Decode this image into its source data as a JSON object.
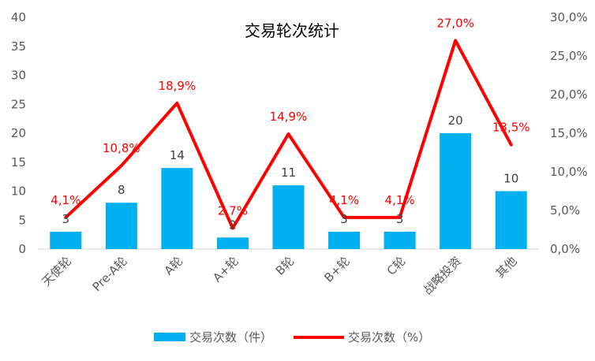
{
  "chart_data": {
    "type": "bar",
    "title": "交易轮次统计",
    "categories": [
      "天使轮",
      "Pre-A轮",
      "A轮",
      "A+轮",
      "B轮",
      "B+轮",
      "C轮",
      "战略投资",
      "其他"
    ],
    "series": [
      {
        "name": "交易次数（件）",
        "type": "bar",
        "axis": "left",
        "values": [
          3,
          8,
          14,
          2,
          11,
          3,
          3,
          20,
          10
        ],
        "labels": [
          "3",
          "8",
          "14",
          "2",
          "11",
          "3",
          "3",
          "20",
          "10"
        ],
        "color": "#00b0f0"
      },
      {
        "name": "交易次数（%）",
        "type": "line",
        "axis": "right",
        "values": [
          4.1,
          10.8,
          18.9,
          2.7,
          14.9,
          4.1,
          4.1,
          27.0,
          13.5
        ],
        "labels": [
          "4,1%",
          "10,8%",
          "18,9%",
          "2,7%",
          "14,9%",
          "4,1%",
          "4,1%",
          "27,0%",
          "13,5%"
        ],
        "color": "#ff0000"
      }
    ],
    "y_left": {
      "lim": [
        0,
        40
      ],
      "ticks": [
        0,
        5,
        10,
        15,
        20,
        25,
        30,
        35,
        40
      ],
      "tick_labels": [
        "0",
        "5",
        "10",
        "15",
        "20",
        "25",
        "30",
        "35",
        "40"
      ]
    },
    "y_right": {
      "lim": [
        0,
        30
      ],
      "ticks": [
        0,
        5,
        10,
        15,
        20,
        25,
        30
      ],
      "tick_labels": [
        "0,0%",
        "5,0%",
        "10,0%",
        "15,0%",
        "20,0%",
        "25,0%",
        "30,0%"
      ]
    },
    "grid": false,
    "legend_position": "bottom"
  }
}
